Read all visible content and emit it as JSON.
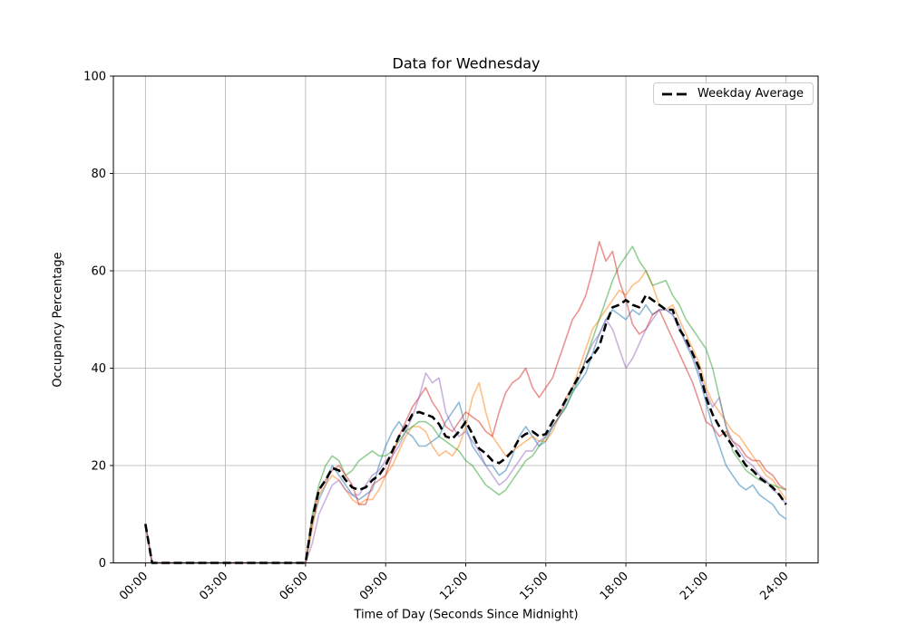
{
  "figure": {
    "title": "Data for Wednesday",
    "xlabel": "Time of Day (Seconds Since Midnight)",
    "ylabel": "Occupancy Percentage",
    "background_color": "#ffffff"
  },
  "legend": {
    "position": "upper-right",
    "entries": [
      {
        "label": "Weekday Average",
        "line_style": "dashed",
        "color": "#000000"
      }
    ]
  },
  "chart_data": {
    "type": "line",
    "title": "Data for Wednesday",
    "xlabel": "Time of Day (Seconds Since Midnight)",
    "ylabel": "Occupancy Percentage",
    "x_unit": "hours_since_midnight",
    "xlim": [
      -1.2,
      25.2
    ],
    "ylim": [
      0,
      100
    ],
    "grid": true,
    "grid_color": "#b0b0b0",
    "spine_color": "#000000",
    "xticks": [
      {
        "h": 0,
        "label": "00:00"
      },
      {
        "h": 3,
        "label": "03:00"
      },
      {
        "h": 6,
        "label": "06:00"
      },
      {
        "h": 9,
        "label": "09:00"
      },
      {
        "h": 12,
        "label": "12:00"
      },
      {
        "h": 15,
        "label": "15:00"
      },
      {
        "h": 18,
        "label": "18:00"
      },
      {
        "h": 21,
        "label": "21:00"
      },
      {
        "h": 24,
        "label": "24:00"
      }
    ],
    "yticks": [
      {
        "v": 0,
        "label": "0"
      },
      {
        "v": 20,
        "label": "20"
      },
      {
        "v": 40,
        "label": "40"
      },
      {
        "v": 60,
        "label": "60"
      },
      {
        "v": 80,
        "label": "80"
      },
      {
        "v": 100,
        "label": "100"
      }
    ],
    "t": [
      0,
      0.25,
      5.75,
      6,
      6.25,
      6.5,
      6.75,
      7,
      7.25,
      7.5,
      7.75,
      8,
      8.25,
      8.5,
      8.75,
      9,
      9.25,
      9.5,
      9.75,
      10,
      10.25,
      10.5,
      10.75,
      11,
      11.25,
      11.5,
      11.75,
      12,
      12.25,
      12.5,
      12.75,
      13,
      13.25,
      13.5,
      13.75,
      14,
      14.25,
      14.5,
      14.75,
      15,
      15.25,
      15.5,
      15.75,
      16,
      16.25,
      16.5,
      16.75,
      17,
      17.25,
      17.5,
      17.75,
      18,
      18.25,
      18.5,
      18.75,
      19,
      19.25,
      19.5,
      19.75,
      20,
      20.25,
      20.5,
      20.75,
      21,
      21.25,
      21.5,
      21.75,
      22,
      22.25,
      22.5,
      22.75,
      23,
      23.25,
      23.5,
      23.75,
      24
    ],
    "series": [
      {
        "name": "weekday-1",
        "color": "#1f77b4",
        "opacity": 0.5,
        "width": 1.6,
        "dash": null,
        "values": [
          8,
          0,
          0,
          0,
          8,
          13,
          16,
          20,
          18,
          16,
          14,
          13,
          14,
          15,
          20,
          24,
          27,
          29,
          27,
          26,
          24,
          24,
          25,
          26,
          29,
          31,
          33,
          28,
          24,
          22,
          20,
          20,
          18,
          19,
          22,
          26,
          28,
          26,
          24,
          25,
          28,
          30,
          32,
          35,
          37,
          39,
          43,
          47,
          50,
          52,
          51,
          50,
          52,
          51,
          53,
          51,
          52,
          52,
          51,
          49,
          45,
          42,
          38,
          33,
          28,
          24,
          20,
          18,
          16,
          15,
          16,
          14,
          13,
          12,
          10,
          9
        ]
      },
      {
        "name": "weekday-2",
        "color": "#ff7f0e",
        "opacity": 0.5,
        "width": 1.6,
        "dash": null,
        "values": [
          8,
          0,
          0,
          0,
          7,
          14,
          16,
          18,
          17,
          15,
          13,
          12,
          13,
          13,
          15,
          18,
          20,
          23,
          26,
          28,
          28,
          27,
          24,
          22,
          23,
          22,
          24,
          28,
          34,
          37,
          31,
          26,
          24,
          22,
          23,
          24,
          25,
          26,
          25,
          25,
          27,
          30,
          34,
          36,
          40,
          44,
          48,
          50,
          52,
          54,
          56,
          55,
          57,
          58,
          60,
          57,
          53,
          52,
          53,
          50,
          47,
          44,
          41,
          36,
          33,
          31,
          29,
          27,
          26,
          24,
          22,
          20,
          18,
          17,
          15,
          13
        ]
      },
      {
        "name": "weekday-3",
        "color": "#2ca02c",
        "opacity": 0.5,
        "width": 1.6,
        "dash": null,
        "values": [
          8,
          0,
          0,
          0,
          10,
          16,
          20,
          22,
          21,
          18,
          19,
          21,
          22,
          23,
          22,
          22,
          23,
          25,
          27,
          28,
          29,
          29,
          28,
          26,
          25,
          24,
          23,
          21,
          20,
          18,
          16,
          15,
          14,
          15,
          17,
          19,
          21,
          22,
          24,
          26,
          28,
          30,
          32,
          35,
          38,
          42,
          46,
          50,
          54,
          58,
          61,
          63,
          65,
          62,
          60,
          57,
          57.5,
          58,
          55,
          53,
          50,
          48,
          46,
          44,
          40,
          34,
          28,
          23,
          21,
          19,
          18,
          17,
          16.5,
          16,
          15.5,
          15
        ]
      },
      {
        "name": "weekday-4",
        "color": "#d62728",
        "opacity": 0.5,
        "width": 1.6,
        "dash": null,
        "values": [
          8,
          0,
          0,
          0,
          9,
          15,
          17,
          19,
          20,
          18,
          16,
          12,
          12,
          16,
          17,
          18,
          22,
          26,
          29,
          32,
          34,
          36,
          33,
          31,
          28,
          27,
          29,
          31,
          30,
          29,
          27,
          26,
          31,
          35,
          37,
          38,
          40,
          36,
          34,
          36,
          38,
          42,
          46,
          50,
          52,
          55,
          60,
          66,
          62,
          64,
          58,
          54,
          49,
          47,
          48,
          51,
          52,
          49,
          46,
          43,
          40,
          37,
          33,
          29,
          28,
          26,
          27,
          25,
          24,
          22,
          21,
          21,
          19,
          18,
          16,
          15
        ]
      },
      {
        "name": "weekday-5",
        "color": "#9467bd",
        "opacity": 0.5,
        "width": 1.6,
        "dash": null,
        "values": [
          8,
          0,
          0,
          0,
          4,
          10,
          13,
          16,
          17,
          15,
          14,
          14,
          16,
          18,
          19,
          21,
          22,
          24,
          27,
          30,
          34,
          39,
          37,
          38,
          31,
          28,
          26,
          27,
          25,
          23,
          20,
          18,
          16,
          17,
          19,
          21,
          23,
          23,
          25,
          26,
          28,
          30,
          33,
          36,
          38,
          42,
          45,
          47,
          50,
          48,
          44,
          40,
          42,
          45,
          48,
          50,
          52,
          52,
          51,
          48,
          45,
          43,
          39,
          35,
          32,
          34,
          28,
          25,
          23,
          21,
          20,
          18,
          17,
          15,
          14,
          12
        ]
      },
      {
        "name": "weekday-average",
        "label": "Weekday Average",
        "color": "#000000",
        "opacity": 1,
        "width": 2.6,
        "dash": [
          9,
          4.5
        ],
        "values": [
          8,
          0,
          0,
          0,
          9,
          15,
          17,
          19.5,
          19,
          17,
          15.5,
          15,
          15.5,
          17,
          18,
          20,
          23,
          26,
          28,
          30.5,
          31,
          30.5,
          30,
          28.5,
          26,
          25.5,
          27,
          29,
          26.5,
          23.5,
          22.5,
          21,
          20.5,
          21.5,
          23,
          25.5,
          26.5,
          27,
          26,
          26.5,
          29,
          31,
          33.5,
          36,
          38.5,
          41,
          42.5,
          44.5,
          49,
          52.5,
          53,
          54,
          53,
          52.5,
          55,
          54,
          53,
          52,
          52,
          48,
          46,
          43,
          40,
          34,
          30.5,
          28,
          26,
          24,
          22,
          20,
          19,
          17.5,
          16.5,
          15.5,
          14,
          12
        ]
      }
    ]
  }
}
